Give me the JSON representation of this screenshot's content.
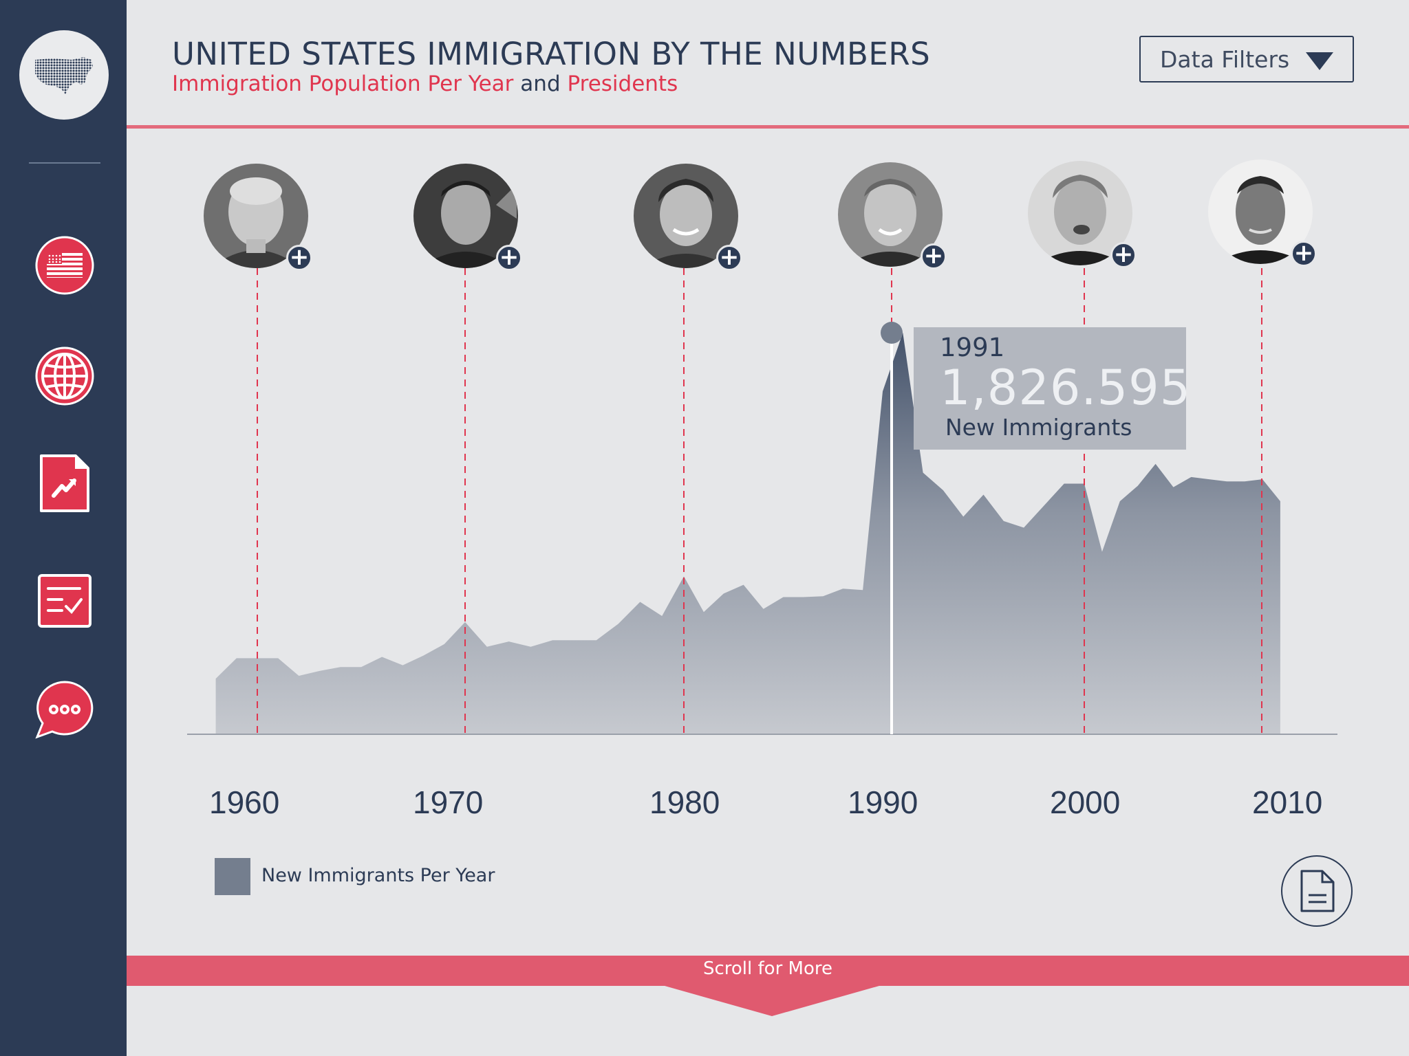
{
  "header": {
    "title": "UNITED STATES IMMIGRATION BY THE NUMBERS",
    "subtitle_part1": "Immigration Population Per Year",
    "subtitle_and": "and",
    "subtitle_part2": "Presidents",
    "filter_label": "Data Filters"
  },
  "sidebar": {
    "items": [
      {
        "icon": "flag-icon"
      },
      {
        "icon": "globe-icon"
      },
      {
        "icon": "chart-report-icon"
      },
      {
        "icon": "checklist-icon"
      },
      {
        "icon": "chat-icon"
      }
    ]
  },
  "presidents": [
    {
      "icon": "president-portrait-icon"
    },
    {
      "icon": "president-portrait-icon"
    },
    {
      "icon": "president-portrait-icon"
    },
    {
      "icon": "president-portrait-icon"
    },
    {
      "icon": "president-portrait-icon"
    },
    {
      "icon": "president-portrait-icon"
    }
  ],
  "tooltip": {
    "year": "1991",
    "value": "1,826.595",
    "label": "New Immigrants"
  },
  "chart": {
    "x_labels": [
      "1960",
      "1970",
      "1980",
      "1990",
      "2000",
      "2010"
    ],
    "legend": "New Immigrants Per Year"
  },
  "chart_data": {
    "type": "area",
    "x": [
      1958,
      1959,
      1960,
      1961,
      1962,
      1963,
      1964,
      1965,
      1966,
      1967,
      1968,
      1969,
      1970,
      1971,
      1972,
      1973,
      1974,
      1975,
      1976,
      1977,
      1978,
      1979,
      1980,
      1981,
      1982,
      1983,
      1984,
      1985,
      1986,
      1987,
      1988,
      1989,
      1990,
      1991,
      1992,
      1993,
      1994,
      1995,
      1996,
      1997,
      1998,
      1999,
      2000,
      2001,
      2002,
      2003,
      2004,
      2005,
      2006,
      2007,
      2008,
      2009,
      2010,
      2011
    ],
    "series": [
      {
        "name": "New Immigrants Per Year",
        "values": [
          253000,
          346000,
          346000,
          346000,
          266000,
          288000,
          306000,
          306000,
          352000,
          314000,
          358000,
          410000,
          510000,
          398000,
          422000,
          398000,
          428000,
          428000,
          428000,
          502000,
          602000,
          538000,
          718000,
          556000,
          640000,
          680000,
          570000,
          624000,
          624000,
          628000,
          662000,
          656000,
          1560000,
          1826595,
          1190000,
          1110000,
          990000,
          1090000,
          970000,
          940000,
          1040000,
          1140000,
          1140000,
          830000,
          1060000,
          1130000,
          1230000,
          1124000,
          1170000,
          1160000,
          1150000,
          1150000,
          1160000,
          1060000
        ]
      }
    ],
    "president_terms_start": [
      1961,
      1971,
      1980,
      1991,
      2000,
      2009
    ],
    "highlight": {
      "x": 1991,
      "y": 1826595
    }
  },
  "colors": {
    "sidebar": "#2c3b55",
    "accent_red": "#e0354e",
    "area_fill": "#9aa1ad",
    "background": "#e6e7e9"
  }
}
